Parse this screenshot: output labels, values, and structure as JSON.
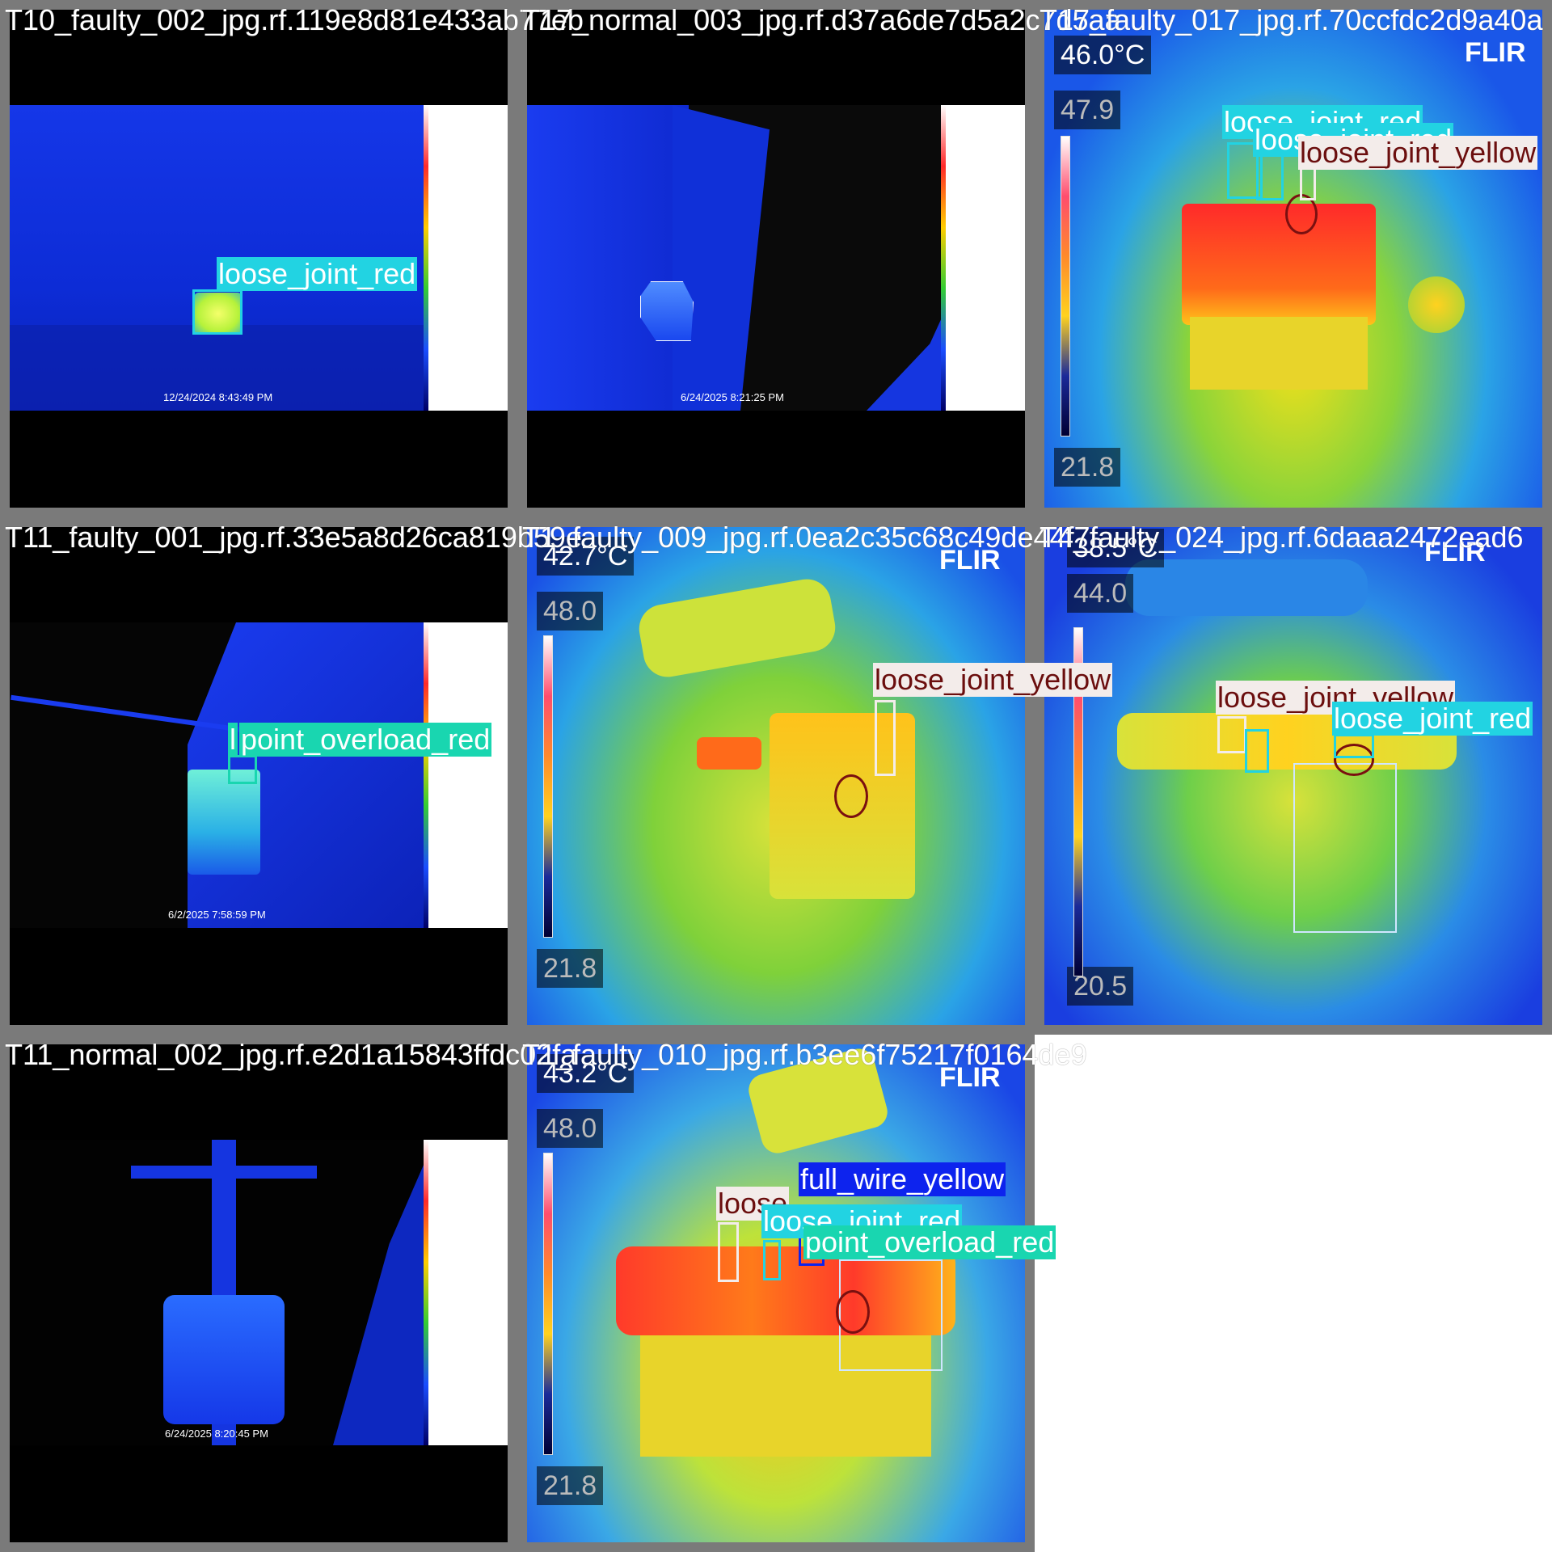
{
  "tiles": [
    {
      "title": "T10_faulty_002_jpg.rf.119e8d81e433ab77eb",
      "timestamp": "12/24/2024 8:43:49 PM",
      "labels": [
        {
          "text": "loose_joint_red",
          "cls": "red"
        }
      ]
    },
    {
      "title": "T17_normal_003_jpg.rf.d37a6de7d5a2c7d5aa",
      "timestamp": "6/24/2025 8:21:25 PM",
      "labels": []
    },
    {
      "title": "T17_faulty_017_jpg.rf.70ccfdc2d9a40a",
      "hud_temp": "46.0°C",
      "hud_max": "47.9",
      "hud_min": "21.8",
      "brand": "FLIR",
      "labels": [
        {
          "text": "loose_joint_red",
          "cls": "red"
        },
        {
          "text": "loose_joint_red",
          "cls": "red"
        },
        {
          "text": "loose_joint_yellow",
          "cls": "yellow"
        }
      ]
    },
    {
      "title": "T11_faulty_001_jpg.rf.33e5a8d26ca819b59e",
      "timestamp": "6/2/2025 7:58:59 PM",
      "labels": [
        {
          "text": "l",
          "cls": "overload"
        },
        {
          "text": "point_overload_red",
          "cls": "overload"
        }
      ]
    },
    {
      "title": "T1_faulty_009_jpg.rf.0ea2c35c68c49de44f7",
      "hud_temp": "42.7°C",
      "hud_max": "48.0",
      "hud_min": "21.8",
      "brand": "FLIR",
      "labels": [
        {
          "text": "loose_joint_yellow",
          "cls": "yellow"
        }
      ]
    },
    {
      "title": "T4_faulty_024_jpg.rf.6daaa2472ead6",
      "hud_temp": "38.5°C",
      "hud_max": "44.0",
      "hud_min": "20.5",
      "brand": "FLIR",
      "labels": [
        {
          "text": "loose_joint_yellow",
          "cls": "yellow"
        },
        {
          "text": "loose_joint_red",
          "cls": "red"
        }
      ]
    },
    {
      "title": "T11_normal_002_jpg.rf.e2d1a15843ffdc02fa",
      "timestamp": "6/24/2025 8:20:45 PM",
      "labels": []
    },
    {
      "title": "T1_faulty_010_jpg.rf.b3ee6f75217f0164de9",
      "hud_temp": "43.2°C",
      "hud_max": "48.0",
      "hud_min": "21.8",
      "brand": "FLIR",
      "labels": [
        {
          "text": "full_wire_yellow",
          "cls": "wire"
        },
        {
          "text": "loose",
          "cls": "yellow"
        },
        {
          "text": "loose_joint_red",
          "cls": "red"
        },
        {
          "text": "point_overload_red",
          "cls": "overload"
        }
      ]
    }
  ]
}
